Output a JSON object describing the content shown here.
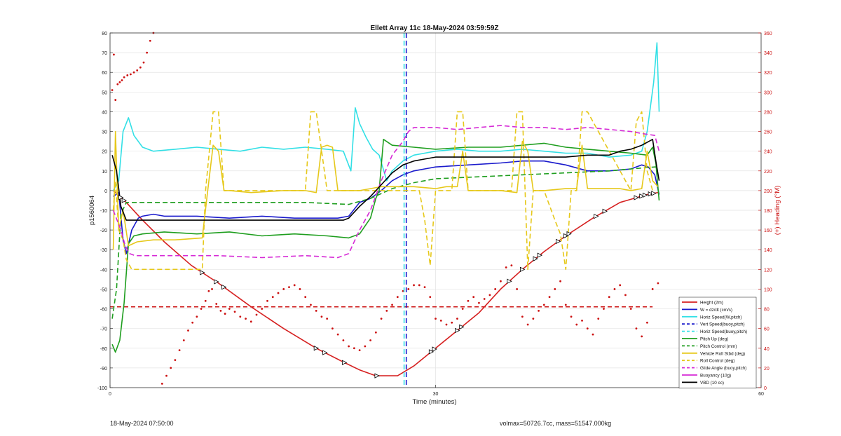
{
  "chart_data": {
    "type": "line",
    "title": "Ellett Array 11c 18-May-2024 03:59:59Z",
    "xlabel": "Time (minutes)",
    "ylabel": "p1560064",
    "y2label": "(+) Heading (°M)",
    "xlim": [
      0,
      60
    ],
    "ylim": [
      -100,
      80
    ],
    "y2lim": [
      0,
      360
    ],
    "xticks": [
      "0",
      "30",
      "60"
    ],
    "xtick_values": [
      0,
      30,
      60
    ],
    "yticks": [
      "-100",
      "-90",
      "-80",
      "-70",
      "-60",
      "-50",
      "-40",
      "-30",
      "-20",
      "-10",
      "0",
      "10",
      "20",
      "30",
      "40",
      "50",
      "60",
      "70",
      "80"
    ],
    "y2ticks": [
      "0",
      "20",
      "40",
      "60",
      "80",
      "100",
      "120",
      "140",
      "160",
      "180",
      "200",
      "220",
      "240",
      "260",
      "280",
      "300",
      "320",
      "340",
      "360"
    ],
    "grid": true,
    "legend_position": "bottom-right",
    "colors": {
      "height": "#d62020",
      "w": "#1a1acc",
      "hspeed": "#33e0e6",
      "vert": "#1a1acc",
      "hspeed_buoy": "#33e0e6",
      "pitch": "#1f9e1f",
      "pitch_ctrl": "#1f9e1f",
      "roll": "#e6c81a",
      "roll_ctrl": "#e6c81a",
      "glide": "#d62ad6",
      "buoy": "#d62ad6",
      "vbd": "#000000",
      "heading": "#cc1111"
    },
    "series": [
      {
        "name": "Height (2m)",
        "key": "height",
        "style": "solid",
        "axis": "left",
        "x": [
          0.3,
          1.5,
          3,
          5,
          7.5,
          10,
          13,
          16,
          19,
          21.5,
          23,
          24.5,
          26.5,
          28,
          30,
          32,
          34,
          36,
          38,
          40,
          42,
          44.5,
          47,
          49.5,
          50.5
        ],
        "y": [
          0,
          -6,
          -15,
          -26,
          -38,
          -47,
          -59,
          -70,
          -80,
          -87,
          -91,
          -94,
          -94,
          -89,
          -80,
          -71,
          -62,
          -50,
          -40,
          -31,
          -23,
          -14,
          -6,
          -2,
          -1
        ]
      },
      {
        "name": "W = dz/dt (cm/s)",
        "key": "w",
        "style": "solid",
        "axis": "left",
        "x": [
          0.3,
          0.8,
          1.2,
          1.5,
          2,
          2.6,
          3,
          4,
          5,
          8,
          11,
          14,
          17,
          19,
          21,
          22,
          23,
          24,
          25,
          26,
          27,
          28,
          29,
          30,
          33,
          36,
          38,
          40,
          42,
          44,
          46,
          48,
          49,
          49.6,
          50.2,
          50.6
        ],
        "y": [
          -3,
          -1,
          -25,
          -32,
          -20,
          -14,
          -13,
          -12,
          -13,
          -13,
          -14,
          -13,
          -14,
          -14,
          -14,
          -13,
          -6,
          -4,
          0,
          5,
          8,
          10,
          11,
          12,
          13,
          14,
          15,
          15,
          13,
          10,
          10,
          11,
          13,
          12,
          8,
          -2
        ]
      },
      {
        "name": "Horiz Speed(W,pitch)",
        "key": "hspeed",
        "style": "solid",
        "axis": "left",
        "x": [
          0.3,
          0.8,
          1.2,
          1.7,
          2.2,
          3,
          4,
          6,
          8,
          10,
          12,
          14,
          16,
          18,
          20,
          21.5,
          22.2,
          22.6,
          23,
          23.6,
          24.2,
          24.8,
          25.5,
          26,
          27,
          28,
          30,
          32,
          34,
          36,
          38,
          40,
          42,
          44,
          46,
          48,
          49,
          49.5,
          50.1,
          50.4,
          50.6
        ],
        "y": [
          0,
          5,
          30,
          37,
          28,
          22,
          20,
          21,
          22,
          21,
          20,
          22,
          21,
          22,
          21,
          20,
          10,
          42,
          34,
          27,
          21,
          18,
          5,
          10,
          15,
          18,
          20,
          21,
          20,
          20,
          21,
          20,
          19,
          19,
          17,
          18,
          20,
          30,
          55,
          75,
          40
        ]
      },
      {
        "name": "Vert Speed(buoy,pitch)",
        "key": "vert",
        "style": "dashed",
        "axis": "left",
        "x": [
          27.3,
          27.3
        ],
        "y": [
          80,
          -100
        ]
      },
      {
        "name": "Horiz Speed(buoy,pitch)",
        "key": "hspeed_buoy",
        "style": "dashed",
        "axis": "left",
        "x": [
          27.1,
          27.1
        ],
        "y": [
          80,
          -100
        ]
      },
      {
        "name": "Pitch Up (deg)",
        "key": "pitch",
        "style": "solid",
        "axis": "left",
        "x": [
          0.2,
          0.5,
          0.9,
          1.3,
          1.7,
          2.2,
          3,
          5,
          8,
          11,
          14,
          17,
          20,
          22,
          23,
          24,
          24.5,
          24.8,
          25.2,
          26,
          28,
          30,
          33,
          36,
          38,
          40,
          42,
          44,
          46,
          48,
          49.5,
          50,
          50.3,
          50.6
        ],
        "y": [
          -78,
          -82,
          -76,
          -57,
          -27,
          -23,
          -22,
          -21,
          -22,
          -21,
          -23,
          -22,
          -23,
          -24,
          -22,
          -14,
          -4,
          0,
          26,
          23,
          22,
          21,
          22,
          22,
          23,
          24,
          22,
          21,
          20,
          19,
          18,
          22,
          14,
          -5
        ]
      },
      {
        "name": "Pitch Control (mm)",
        "key": "pitch_ctrl",
        "style": "dashed",
        "axis": "left",
        "x": [
          0.2,
          0.6,
          1,
          1.5,
          3,
          6,
          10,
          14,
          18,
          22,
          24,
          26,
          28,
          30,
          34,
          38,
          42,
          46,
          48,
          50.2,
          50.6
        ],
        "y": [
          -65,
          -50,
          -12,
          -6,
          -6,
          -6,
          -6,
          -6,
          -6,
          -7,
          -4,
          1,
          4,
          6,
          7,
          8,
          9,
          10,
          11,
          12,
          12
        ]
      },
      {
        "name": "Vehicle Roll Stbd (deg)",
        "key": "roll",
        "style": "solid",
        "axis": "left",
        "x": [
          0.3,
          0.5,
          0.8,
          1.2,
          1.7,
          2.5,
          4,
          6,
          8.5,
          9,
          9.5,
          10,
          10.5,
          11,
          13,
          16,
          18,
          19,
          19.5,
          20,
          20.5,
          21,
          23,
          24,
          25,
          26,
          28,
          30,
          31,
          32,
          32.5,
          33,
          34,
          36,
          37.5,
          38,
          38.5,
          39,
          40,
          42,
          43,
          43.5,
          44,
          45,
          47,
          48,
          49,
          49.5,
          50,
          50.5
        ],
        "y": [
          -30,
          30,
          -20,
          -10,
          -28,
          -26,
          -25,
          -25,
          -24,
          0,
          23,
          20,
          0,
          0,
          -1,
          0,
          0,
          -1,
          22,
          23,
          22,
          0,
          0,
          1,
          2,
          2,
          2,
          1,
          2,
          2,
          20,
          0,
          0,
          0,
          -1,
          25,
          20,
          0,
          0,
          1,
          1,
          23,
          1,
          1,
          1,
          0,
          1,
          20,
          5,
          2
        ]
      },
      {
        "name": "Roll Control (deg)",
        "key": "roll_ctrl",
        "style": "dashed",
        "axis": "left",
        "x": [
          0.3,
          0.5,
          0.8,
          1.2,
          1.5,
          2,
          4,
          8.5,
          8.8,
          9.5,
          10,
          10.5,
          11,
          18,
          18.5,
          19,
          20,
          20.5,
          21,
          23,
          24,
          27,
          28,
          28.5,
          29,
          29.5,
          30,
          31.5,
          32,
          32.5,
          33,
          37,
          37.5,
          38,
          38.5,
          39,
          40,
          41,
          41.5,
          42,
          42.5,
          43,
          43.5,
          44,
          48,
          48.5,
          49,
          49.5,
          50
        ],
        "y": [
          -10,
          5,
          -20,
          -25,
          -35,
          -40,
          -40,
          -40,
          0,
          40,
          40,
          0,
          0,
          0,
          40,
          40,
          0,
          0,
          0,
          0,
          0,
          0,
          0,
          0,
          -15,
          -38,
          0,
          0,
          40,
          40,
          0,
          0,
          40,
          40,
          -40,
          0,
          0,
          -15,
          -22,
          -40,
          0,
          0,
          40,
          40,
          0,
          35,
          40,
          10,
          0
        ]
      },
      {
        "name": "Glide Angle (buoy,pitch)",
        "key": "glide",
        "style": "dashed",
        "axis": "left",
        "x": [
          0.3,
          1,
          1.4,
          1.8,
          2.3,
          3,
          6,
          10,
          14,
          18,
          21,
          22,
          23,
          24,
          25,
          26,
          27,
          27.5,
          28,
          30,
          32,
          34,
          36,
          38,
          40,
          42,
          44,
          46,
          48,
          49,
          50.2,
          50.6
        ],
        "y": [
          -10,
          -20,
          -28,
          -32,
          -33,
          -33,
          -33,
          -33,
          -34,
          -33,
          -34,
          -32,
          -20,
          -10,
          5,
          18,
          25,
          30,
          32,
          32,
          31,
          32,
          33,
          32,
          32,
          31,
          32,
          31,
          30,
          29,
          28,
          20
        ]
      },
      {
        "name": "Buoyancy (10g)",
        "key": "buoy",
        "style": "solid",
        "axis": "left",
        "x": [],
        "y": []
      },
      {
        "name": "VBD (10 cc)",
        "key": "vbd",
        "style": "solid",
        "axis": "left",
        "x": [
          0.2,
          0.6,
          1,
          1.5,
          3,
          6,
          10,
          14,
          18,
          21.5,
          22,
          23,
          24,
          25,
          26,
          27,
          28,
          29,
          30,
          32,
          34,
          36,
          38,
          40,
          42,
          44,
          46,
          47,
          48,
          49,
          50,
          50.3,
          50.6
        ],
        "y": [
          18,
          10,
          -8,
          -15,
          -15,
          -15,
          -15,
          -15,
          -15,
          -15,
          -14,
          -8,
          -3,
          3,
          9,
          13,
          15,
          16,
          17,
          17,
          17,
          17,
          17,
          17,
          17,
          18,
          18,
          20,
          21,
          23,
          26,
          15,
          5
        ]
      }
    ],
    "heading_points": {
      "name": "(+) Heading (°M)",
      "axis": "right",
      "x": [
        0.2,
        0.35,
        0.5,
        0.7,
        0.9,
        1.1,
        1.3,
        1.6,
        1.9,
        2.2,
        2.5,
        2.8,
        3.1,
        3.4,
        3.7,
        4,
        4.3,
        4.6,
        4.8,
        5.2,
        5.6,
        6,
        6.4,
        6.8,
        7.2,
        7.6,
        8,
        8.4,
        8.8,
        9.1,
        9.4,
        9.8,
        10.2,
        10.6,
        11,
        11.5,
        12,
        12.5,
        13,
        13.5,
        14,
        14.5,
        15,
        15.5,
        16,
        16.5,
        17,
        17.5,
        18,
        18.5,
        19,
        19.5,
        20,
        20.5,
        21,
        21.5,
        22,
        22.5,
        23,
        23.5,
        24,
        24.5,
        25,
        25.5,
        26,
        26.5,
        27,
        27.5,
        28,
        28.5,
        29,
        29.5,
        30,
        30.5,
        31,
        31.5,
        32,
        32.5,
        33,
        33.5,
        34,
        34.5,
        35,
        35.5,
        36,
        36.5,
        37,
        37.5,
        38,
        38.5,
        39,
        39.5,
        40,
        40.5,
        41,
        41.5,
        42,
        42.5,
        43,
        43.5,
        44,
        44.5,
        45,
        45.5,
        46,
        46.5,
        47,
        47.5,
        48,
        48.5,
        49,
        49.5,
        50,
        50.5
      ],
      "y": [
        302,
        338,
        292,
        308,
        310,
        312,
        315,
        317,
        318,
        320,
        322,
        325,
        330,
        340,
        352,
        360,
        362,
        365,
        4,
        12,
        20,
        28,
        38,
        48,
        58,
        66,
        72,
        80,
        88,
        98,
        100,
        85,
        78,
        75,
        80,
        77,
        72,
        70,
        67,
        74,
        80,
        88,
        92,
        96,
        100,
        102,
        104,
        100,
        92,
        84,
        78,
        72,
        70,
        60,
        54,
        48,
        42,
        40,
        38,
        42,
        48,
        56,
        70,
        78,
        84,
        92,
        98,
        100,
        104,
        104,
        102,
        92,
        70,
        68,
        64,
        66,
        70,
        80,
        88,
        92,
        86,
        90,
        94,
        100,
        108,
        122,
        124,
        100,
        72,
        64,
        70,
        78,
        84,
        92,
        100,
        108,
        84,
        72,
        64,
        68,
        60,
        54,
        70,
        80,
        92,
        100,
        104,
        94,
        80,
        60,
        52,
        66,
        100,
        106
      ],
      "dash_y": 82
    }
  },
  "legend": [
    "Height (2m)",
    "W = dz/dt (cm/s)",
    "Horiz Speed(W,pitch)",
    "Vert Speed(buoy,pitch)",
    "Horiz Speed(buoy,pitch)",
    "Pitch Up (deg)",
    "Pitch Control (mm)",
    "Vehicle Roll Stbd (deg)",
    "Roll Control (deg)",
    "Glide Angle (buoy,pitch)",
    "Buoyancy (10g)",
    "VBD (10 cc)"
  ],
  "footer": {
    "left": "18-May-2024 07:50:00",
    "right": "volmax=50726.7cc, mass=51547.000kg"
  }
}
